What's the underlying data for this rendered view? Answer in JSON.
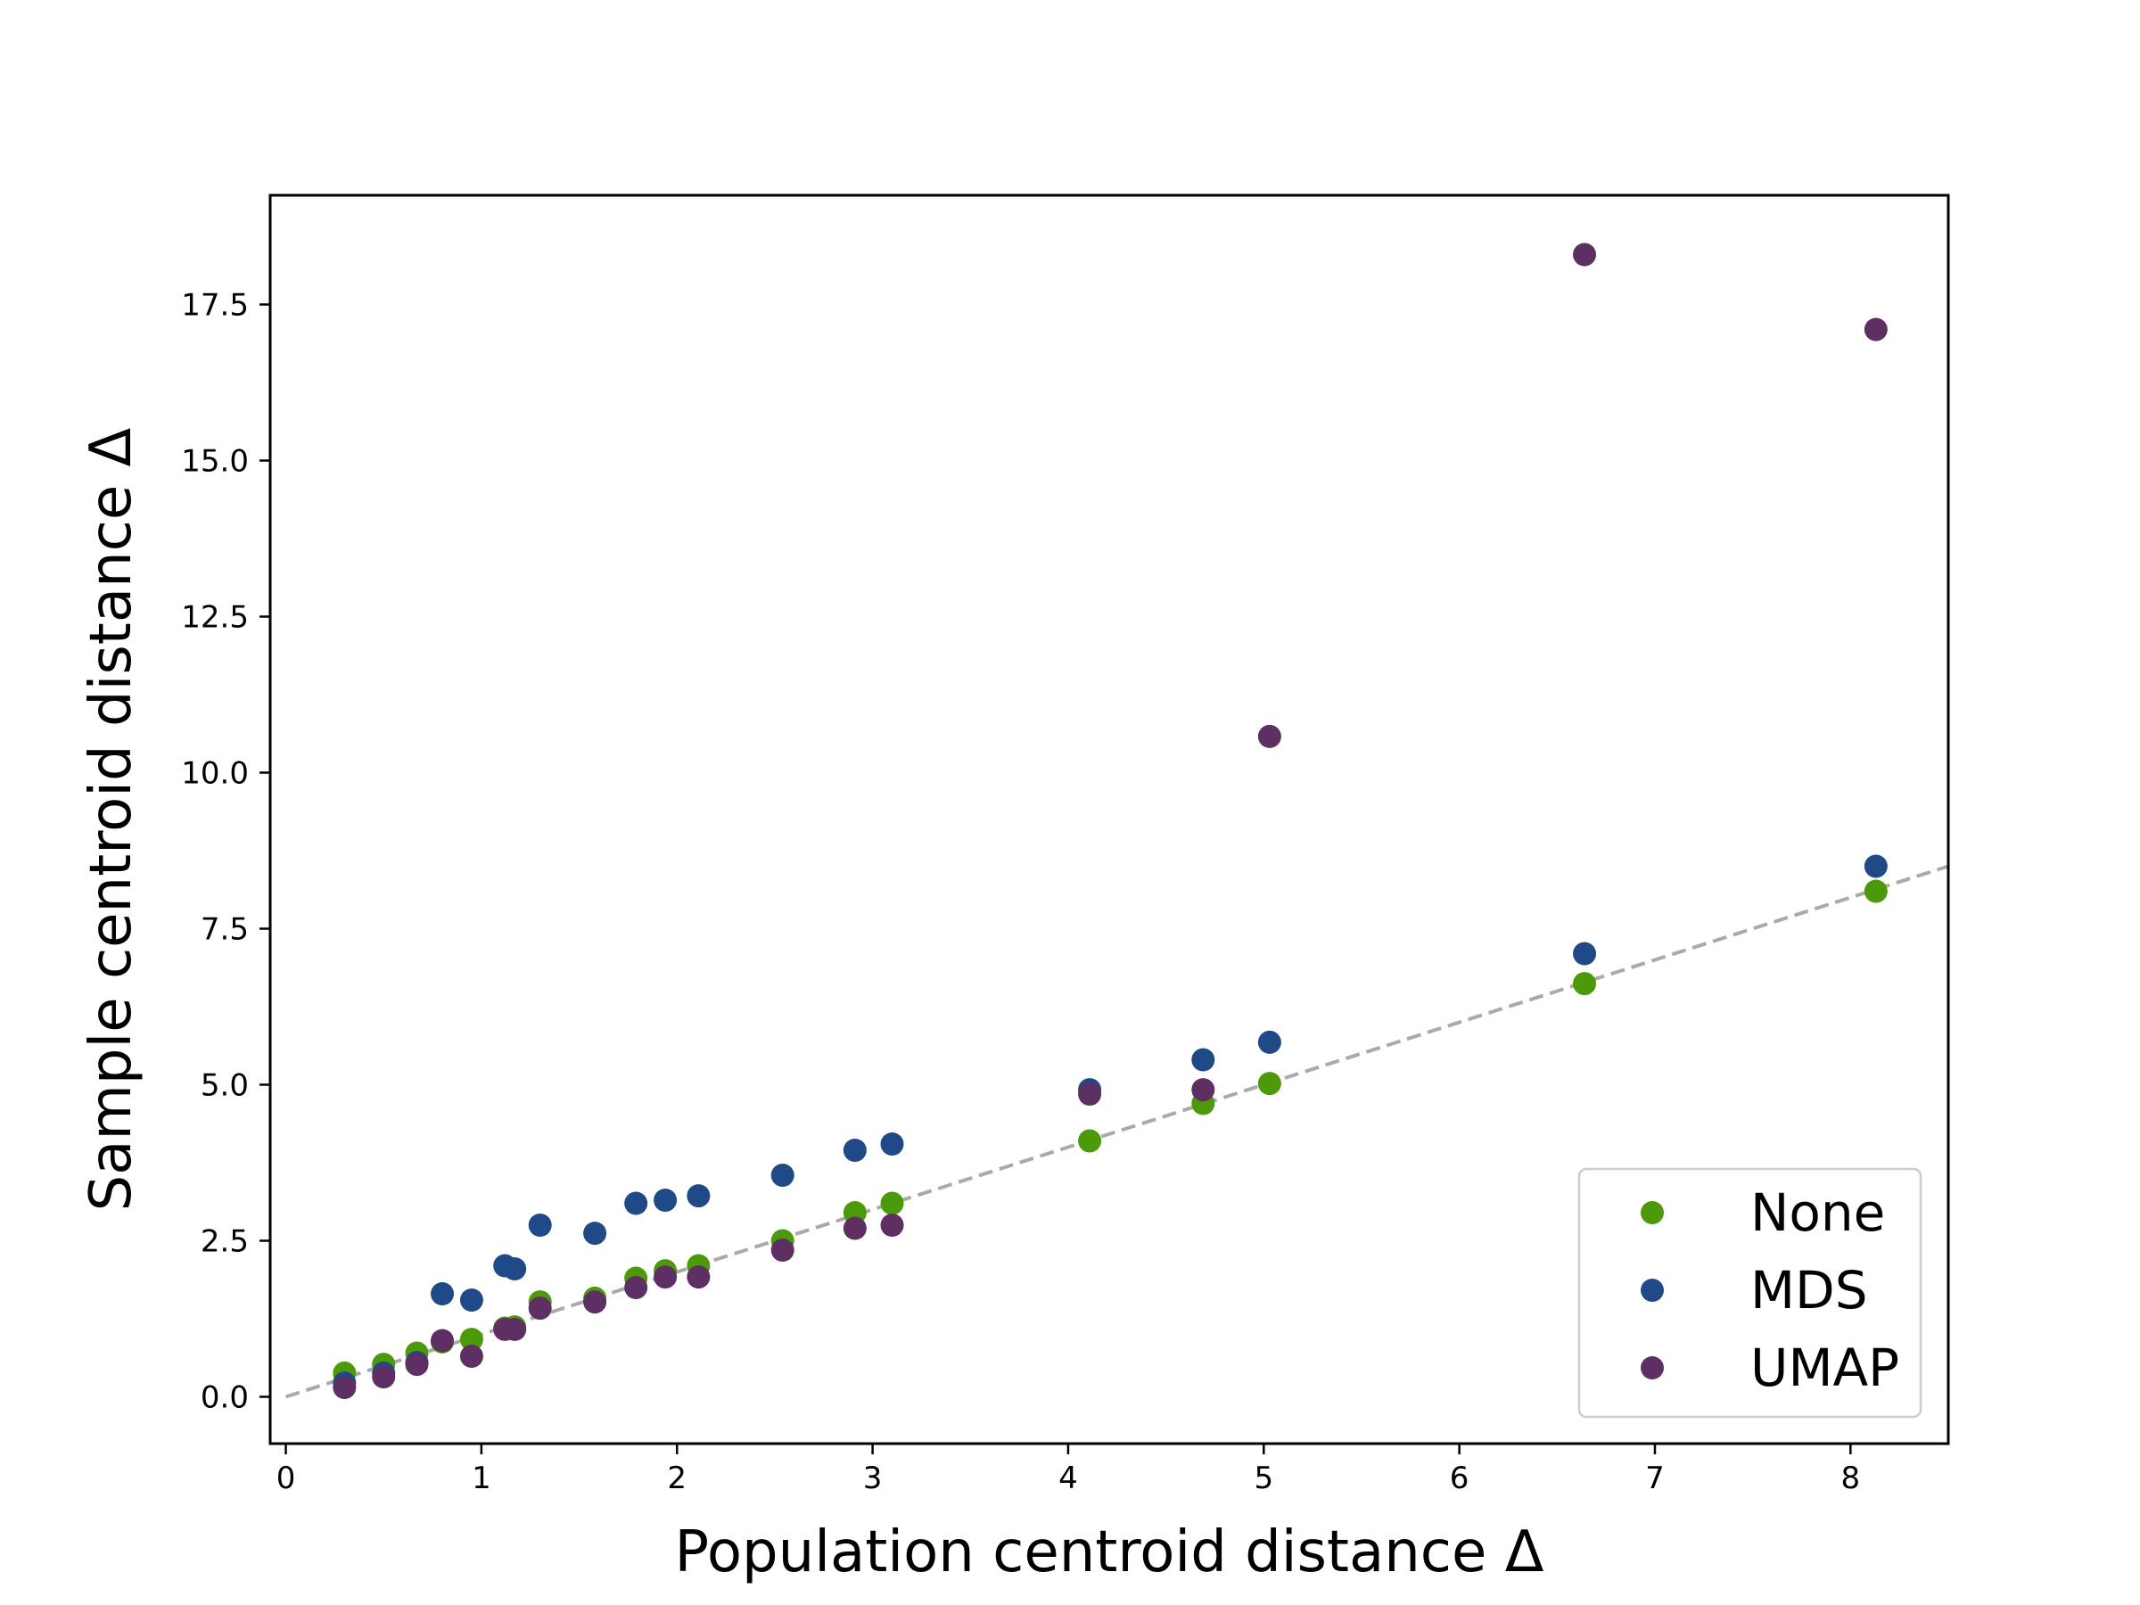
{
  "chart_data": {
    "type": "scatter",
    "title": "",
    "xlabel": "Population centroid distance Δ",
    "ylabel": "Sample centroid distance Δ",
    "xlim": [
      -0.08,
      8.5
    ],
    "ylim": [
      -0.75,
      19.25
    ],
    "xticks": [
      0,
      1,
      2,
      3,
      4,
      5,
      6,
      7,
      8
    ],
    "xtick_labels": [
      "0",
      "1",
      "2",
      "3",
      "4",
      "5",
      "6",
      "7",
      "8"
    ],
    "yticks": [
      0,
      2.5,
      5,
      7.5,
      10,
      12.5,
      15,
      17.5
    ],
    "ytick_labels": [
      "0.0",
      "2.5",
      "5.0",
      "7.5",
      "10.0",
      "12.5",
      "15.0",
      "17.5"
    ],
    "grid": false,
    "legend": {
      "position": "lower-right",
      "entries": [
        "None",
        "MDS",
        "UMAP"
      ]
    },
    "reference_line": {
      "style": "dashed",
      "color": "#aaaaaa",
      "slope": 1,
      "intercept": 0
    },
    "series": [
      {
        "name": "None",
        "color": "#4c9a0a",
        "points": [
          [
            0.3,
            0.38
          ],
          [
            0.5,
            0.52
          ],
          [
            0.67,
            0.7
          ],
          [
            0.8,
            0.88
          ],
          [
            0.95,
            0.92
          ],
          [
            1.12,
            1.1
          ],
          [
            1.17,
            1.12
          ],
          [
            1.3,
            1.52
          ],
          [
            1.58,
            1.58
          ],
          [
            1.79,
            1.9
          ],
          [
            1.94,
            2.02
          ],
          [
            2.11,
            2.1
          ],
          [
            2.54,
            2.5
          ],
          [
            2.91,
            2.95
          ],
          [
            3.1,
            3.1
          ],
          [
            4.11,
            4.1
          ],
          [
            4.69,
            4.7
          ],
          [
            5.03,
            5.02
          ],
          [
            6.64,
            6.62
          ],
          [
            8.13,
            8.1
          ]
        ]
      },
      {
        "name": "MDS",
        "color": "#1f4a87",
        "points": [
          [
            0.3,
            0.22
          ],
          [
            0.5,
            0.38
          ],
          [
            0.67,
            0.55
          ],
          [
            0.8,
            1.65
          ],
          [
            0.95,
            1.55
          ],
          [
            1.12,
            2.1
          ],
          [
            1.17,
            2.05
          ],
          [
            1.3,
            2.75
          ],
          [
            1.58,
            2.62
          ],
          [
            1.79,
            3.1
          ],
          [
            1.94,
            3.15
          ],
          [
            2.11,
            3.22
          ],
          [
            2.54,
            3.55
          ],
          [
            2.91,
            3.95
          ],
          [
            3.1,
            4.05
          ],
          [
            4.11,
            4.92
          ],
          [
            4.69,
            5.4
          ],
          [
            5.03,
            5.68
          ],
          [
            6.64,
            7.1
          ],
          [
            8.13,
            8.5
          ]
        ]
      },
      {
        "name": "UMAP",
        "color": "#5e2f62",
        "points": [
          [
            0.3,
            0.15
          ],
          [
            0.5,
            0.32
          ],
          [
            0.67,
            0.52
          ],
          [
            0.8,
            0.9
          ],
          [
            0.95,
            0.65
          ],
          [
            1.12,
            1.08
          ],
          [
            1.17,
            1.08
          ],
          [
            1.3,
            1.42
          ],
          [
            1.58,
            1.52
          ],
          [
            1.79,
            1.75
          ],
          [
            1.94,
            1.92
          ],
          [
            2.11,
            1.92
          ],
          [
            2.54,
            2.35
          ],
          [
            2.91,
            2.7
          ],
          [
            3.1,
            2.75
          ],
          [
            4.11,
            4.85
          ],
          [
            4.69,
            4.92
          ],
          [
            5.03,
            10.58
          ],
          [
            6.64,
            18.3
          ],
          [
            8.13,
            17.1
          ]
        ]
      }
    ]
  }
}
